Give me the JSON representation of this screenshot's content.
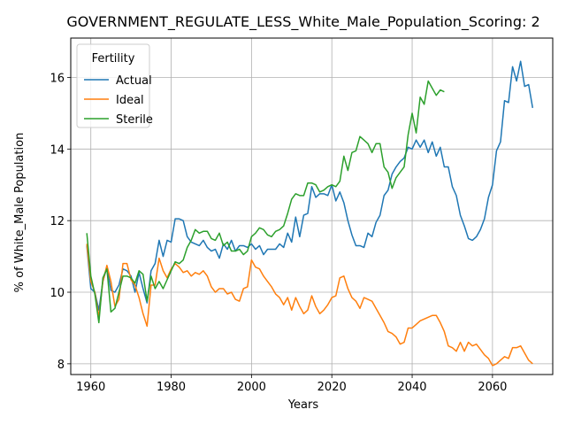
{
  "chart_data": {
    "type": "line",
    "title": "GOVERNMENT_REGULATE_LESS_White_Male_Population_Scoring: 2",
    "xlabel": "Years",
    "ylabel": "% of White_Male Population",
    "xlim": [
      1955,
      2075
    ],
    "ylim": [
      7.7,
      17.1
    ],
    "xticks": [
      1960,
      1980,
      2000,
      2020,
      2040,
      2060
    ],
    "yticks": [
      8,
      10,
      12,
      14,
      16
    ],
    "grid": true,
    "legend": {
      "title": "Fertility",
      "placement": "top-left"
    },
    "series": [
      {
        "name": "Actual",
        "color": "#1f77b4",
        "points": [
          [
            1959,
            11.3
          ],
          [
            1960,
            10.1
          ],
          [
            1961,
            10.0
          ],
          [
            1962,
            9.5
          ],
          [
            1963,
            10.3
          ],
          [
            1964,
            10.7
          ],
          [
            1965,
            10.05
          ],
          [
            1966,
            10.0
          ],
          [
            1967,
            10.2
          ],
          [
            1968,
            10.65
          ],
          [
            1969,
            10.6
          ],
          [
            1970,
            10.45
          ],
          [
            1971,
            10.0
          ],
          [
            1972,
            10.55
          ],
          [
            1973,
            10.1
          ],
          [
            1974,
            9.7
          ],
          [
            1975,
            10.6
          ],
          [
            1976,
            10.8
          ],
          [
            1977,
            11.45
          ],
          [
            1978,
            11.0
          ],
          [
            1979,
            11.45
          ],
          [
            1980,
            11.4
          ],
          [
            1981,
            12.05
          ],
          [
            1982,
            12.05
          ],
          [
            1983,
            12.0
          ],
          [
            1984,
            11.55
          ],
          [
            1985,
            11.4
          ],
          [
            1986,
            11.35
          ],
          [
            1987,
            11.3
          ],
          [
            1988,
            11.45
          ],
          [
            1989,
            11.25
          ],
          [
            1990,
            11.15
          ],
          [
            1991,
            11.2
          ],
          [
            1992,
            10.95
          ],
          [
            1993,
            11.35
          ],
          [
            1994,
            11.2
          ],
          [
            1995,
            11.45
          ],
          [
            1996,
            11.15
          ],
          [
            1997,
            11.3
          ],
          [
            1998,
            11.3
          ],
          [
            1999,
            11.25
          ],
          [
            2000,
            11.35
          ],
          [
            2001,
            11.2
          ],
          [
            2002,
            11.3
          ],
          [
            2003,
            11.05
          ],
          [
            2004,
            11.2
          ],
          [
            2005,
            11.2
          ],
          [
            2006,
            11.2
          ],
          [
            2007,
            11.35
          ],
          [
            2008,
            11.25
          ],
          [
            2009,
            11.65
          ],
          [
            2010,
            11.4
          ],
          [
            2011,
            12.1
          ],
          [
            2012,
            11.55
          ],
          [
            2013,
            12.15
          ],
          [
            2014,
            12.2
          ],
          [
            2015,
            12.95
          ],
          [
            2016,
            12.65
          ],
          [
            2017,
            12.75
          ],
          [
            2018,
            12.75
          ],
          [
            2019,
            12.7
          ],
          [
            2020,
            13.0
          ],
          [
            2021,
            12.55
          ],
          [
            2022,
            12.8
          ],
          [
            2023,
            12.5
          ],
          [
            2024,
            12.0
          ],
          [
            2025,
            11.6
          ],
          [
            2026,
            11.3
          ],
          [
            2027,
            11.3
          ],
          [
            2028,
            11.25
          ],
          [
            2029,
            11.65
          ],
          [
            2030,
            11.55
          ],
          [
            2031,
            11.95
          ],
          [
            2032,
            12.15
          ],
          [
            2033,
            12.7
          ],
          [
            2034,
            12.85
          ],
          [
            2035,
            13.3
          ],
          [
            2036,
            13.5
          ],
          [
            2037,
            13.65
          ],
          [
            2038,
            13.75
          ],
          [
            2039,
            14.05
          ],
          [
            2040,
            14.0
          ],
          [
            2041,
            14.25
          ],
          [
            2042,
            14.05
          ],
          [
            2043,
            14.25
          ],
          [
            2044,
            13.9
          ],
          [
            2045,
            14.2
          ],
          [
            2046,
            13.8
          ],
          [
            2047,
            14.05
          ],
          [
            2048,
            13.5
          ],
          [
            2049,
            13.5
          ],
          [
            2050,
            12.95
          ],
          [
            2051,
            12.7
          ],
          [
            2052,
            12.15
          ],
          [
            2053,
            11.85
          ],
          [
            2054,
            11.5
          ],
          [
            2055,
            11.45
          ],
          [
            2056,
            11.55
          ],
          [
            2057,
            11.75
          ],
          [
            2058,
            12.05
          ],
          [
            2059,
            12.65
          ],
          [
            2060,
            13.0
          ],
          [
            2061,
            13.95
          ],
          [
            2062,
            14.2
          ],
          [
            2063,
            15.35
          ],
          [
            2064,
            15.3
          ],
          [
            2065,
            16.3
          ],
          [
            2066,
            15.9
          ],
          [
            2067,
            16.45
          ],
          [
            2068,
            15.75
          ],
          [
            2069,
            15.8
          ],
          [
            2070,
            15.15
          ]
        ]
      },
      {
        "name": "Ideal",
        "color": "#ff7f0e",
        "points": [
          [
            1959,
            11.35
          ],
          [
            1960,
            10.3
          ],
          [
            1961,
            10.0
          ],
          [
            1962,
            9.3
          ],
          [
            1963,
            10.3
          ],
          [
            1964,
            10.75
          ],
          [
            1965,
            10.3
          ],
          [
            1966,
            9.6
          ],
          [
            1967,
            9.8
          ],
          [
            1968,
            10.8
          ],
          [
            1969,
            10.8
          ],
          [
            1970,
            10.35
          ],
          [
            1971,
            10.2
          ],
          [
            1972,
            9.85
          ],
          [
            1973,
            9.4
          ],
          [
            1974,
            9.05
          ],
          [
            1975,
            10.2
          ],
          [
            1976,
            10.2
          ],
          [
            1977,
            10.95
          ],
          [
            1978,
            10.6
          ],
          [
            1979,
            10.4
          ],
          [
            1980,
            10.65
          ],
          [
            1981,
            10.8
          ],
          [
            1982,
            10.7
          ],
          [
            1983,
            10.55
          ],
          [
            1984,
            10.6
          ],
          [
            1985,
            10.45
          ],
          [
            1986,
            10.55
          ],
          [
            1987,
            10.5
          ],
          [
            1988,
            10.6
          ],
          [
            1989,
            10.45
          ],
          [
            1990,
            10.15
          ],
          [
            1991,
            10.0
          ],
          [
            1992,
            10.1
          ],
          [
            1993,
            10.1
          ],
          [
            1994,
            9.95
          ],
          [
            1995,
            10.0
          ],
          [
            1996,
            9.8
          ],
          [
            1997,
            9.75
          ],
          [
            1998,
            10.1
          ],
          [
            1999,
            10.15
          ],
          [
            2000,
            10.9
          ],
          [
            2001,
            10.7
          ],
          [
            2002,
            10.65
          ],
          [
            2003,
            10.45
          ],
          [
            2004,
            10.3
          ],
          [
            2005,
            10.15
          ],
          [
            2006,
            9.95
          ],
          [
            2007,
            9.85
          ],
          [
            2008,
            9.65
          ],
          [
            2009,
            9.85
          ],
          [
            2010,
            9.5
          ],
          [
            2011,
            9.85
          ],
          [
            2012,
            9.6
          ],
          [
            2013,
            9.4
          ],
          [
            2014,
            9.5
          ],
          [
            2015,
            9.9
          ],
          [
            2016,
            9.6
          ],
          [
            2017,
            9.4
          ],
          [
            2018,
            9.5
          ],
          [
            2019,
            9.65
          ],
          [
            2020,
            9.85
          ],
          [
            2021,
            9.9
          ],
          [
            2022,
            10.4
          ],
          [
            2023,
            10.45
          ],
          [
            2024,
            10.1
          ],
          [
            2025,
            9.85
          ],
          [
            2026,
            9.75
          ],
          [
            2027,
            9.55
          ],
          [
            2028,
            9.85
          ],
          [
            2029,
            9.8
          ],
          [
            2030,
            9.75
          ],
          [
            2031,
            9.55
          ],
          [
            2032,
            9.35
          ],
          [
            2033,
            9.15
          ],
          [
            2034,
            8.9
          ],
          [
            2035,
            8.85
          ],
          [
            2036,
            8.75
          ],
          [
            2037,
            8.55
          ],
          [
            2038,
            8.6
          ],
          [
            2039,
            9.0
          ],
          [
            2040,
            9.0
          ],
          [
            2041,
            9.1
          ],
          [
            2042,
            9.2
          ],
          [
            2043,
            9.25
          ],
          [
            2044,
            9.3
          ],
          [
            2045,
            9.35
          ],
          [
            2046,
            9.35
          ],
          [
            2047,
            9.15
          ],
          [
            2048,
            8.9
          ],
          [
            2049,
            8.5
          ],
          [
            2050,
            8.45
          ],
          [
            2051,
            8.35
          ],
          [
            2052,
            8.6
          ],
          [
            2053,
            8.35
          ],
          [
            2054,
            8.6
          ],
          [
            2055,
            8.5
          ],
          [
            2056,
            8.55
          ],
          [
            2057,
            8.4
          ],
          [
            2058,
            8.25
          ],
          [
            2059,
            8.15
          ],
          [
            2060,
            7.95
          ],
          [
            2061,
            8.0
          ],
          [
            2062,
            8.1
          ],
          [
            2063,
            8.2
          ],
          [
            2064,
            8.15
          ],
          [
            2065,
            8.45
          ],
          [
            2066,
            8.45
          ],
          [
            2067,
            8.5
          ],
          [
            2068,
            8.3
          ],
          [
            2069,
            8.1
          ],
          [
            2070,
            8.0
          ]
        ]
      },
      {
        "name": "Sterile",
        "color": "#2ca02c",
        "points": [
          [
            1959,
            11.65
          ],
          [
            1960,
            10.45
          ],
          [
            1961,
            9.95
          ],
          [
            1962,
            9.15
          ],
          [
            1963,
            10.4
          ],
          [
            1964,
            10.65
          ],
          [
            1965,
            9.45
          ],
          [
            1966,
            9.55
          ],
          [
            1967,
            10.0
          ],
          [
            1968,
            10.45
          ],
          [
            1969,
            10.45
          ],
          [
            1970,
            10.4
          ],
          [
            1971,
            10.25
          ],
          [
            1972,
            10.6
          ],
          [
            1973,
            10.5
          ],
          [
            1974,
            9.75
          ],
          [
            1975,
            10.45
          ],
          [
            1976,
            10.1
          ],
          [
            1977,
            10.3
          ],
          [
            1978,
            10.1
          ],
          [
            1979,
            10.35
          ],
          [
            1980,
            10.6
          ],
          [
            1981,
            10.85
          ],
          [
            1982,
            10.8
          ],
          [
            1983,
            10.9
          ],
          [
            1984,
            11.25
          ],
          [
            1985,
            11.45
          ],
          [
            1986,
            11.75
          ],
          [
            1987,
            11.65
          ],
          [
            1988,
            11.7
          ],
          [
            1989,
            11.7
          ],
          [
            1990,
            11.5
          ],
          [
            1991,
            11.45
          ],
          [
            1992,
            11.65
          ],
          [
            1993,
            11.3
          ],
          [
            1994,
            11.4
          ],
          [
            1995,
            11.15
          ],
          [
            1996,
            11.15
          ],
          [
            1997,
            11.2
          ],
          [
            1998,
            11.05
          ],
          [
            1999,
            11.15
          ],
          [
            2000,
            11.55
          ],
          [
            2001,
            11.65
          ],
          [
            2002,
            11.8
          ],
          [
            2003,
            11.75
          ],
          [
            2004,
            11.6
          ],
          [
            2005,
            11.55
          ],
          [
            2006,
            11.7
          ],
          [
            2007,
            11.75
          ],
          [
            2008,
            11.85
          ],
          [
            2009,
            12.2
          ],
          [
            2010,
            12.6
          ],
          [
            2011,
            12.75
          ],
          [
            2012,
            12.7
          ],
          [
            2013,
            12.7
          ],
          [
            2014,
            13.05
          ],
          [
            2015,
            13.05
          ],
          [
            2016,
            13.0
          ],
          [
            2017,
            12.8
          ],
          [
            2018,
            12.85
          ],
          [
            2019,
            12.95
          ],
          [
            2020,
            13.0
          ],
          [
            2021,
            12.95
          ],
          [
            2022,
            13.1
          ],
          [
            2023,
            13.8
          ],
          [
            2024,
            13.4
          ],
          [
            2025,
            13.9
          ],
          [
            2026,
            13.95
          ],
          [
            2027,
            14.35
          ],
          [
            2028,
            14.25
          ],
          [
            2029,
            14.15
          ],
          [
            2030,
            13.9
          ],
          [
            2031,
            14.15
          ],
          [
            2032,
            14.15
          ],
          [
            2033,
            13.5
          ],
          [
            2034,
            13.35
          ],
          [
            2035,
            12.9
          ],
          [
            2036,
            13.2
          ],
          [
            2037,
            13.35
          ],
          [
            2038,
            13.5
          ],
          [
            2039,
            14.4
          ],
          [
            2040,
            15.0
          ],
          [
            2041,
            14.45
          ],
          [
            2042,
            15.45
          ],
          [
            2043,
            15.25
          ],
          [
            2044,
            15.9
          ],
          [
            2045,
            15.7
          ],
          [
            2046,
            15.5
          ],
          [
            2047,
            15.65
          ],
          [
            2048,
            15.6
          ]
        ]
      }
    ]
  }
}
